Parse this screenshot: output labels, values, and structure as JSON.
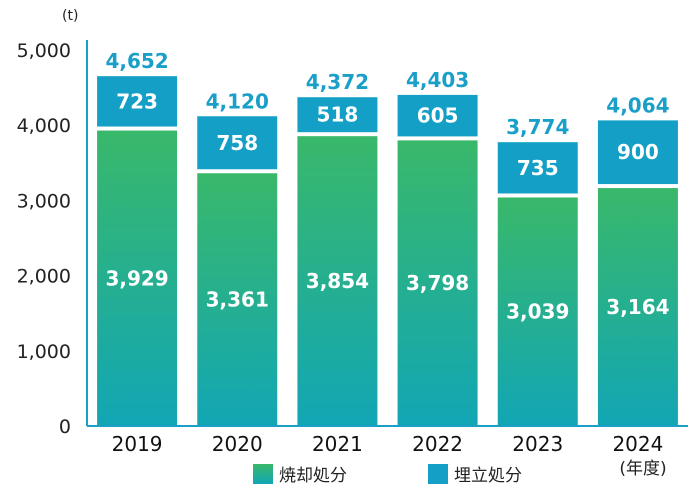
{
  "chart_data": {
    "type": "bar",
    "stacked": true,
    "unit_label": "(t)",
    "year_suffix_label": "(年度)",
    "categories": [
      "2019",
      "2020",
      "2021",
      "2022",
      "2023",
      "2024"
    ],
    "series": [
      {
        "name": "焼却処分",
        "values": [
          3929,
          3361,
          3854,
          3798,
          3039,
          3164
        ],
        "value_labels": [
          "3,929",
          "3,361",
          "3,854",
          "3,798",
          "3,039",
          "3,164"
        ]
      },
      {
        "name": "埋立処分",
        "values": [
          723,
          758,
          518,
          605,
          735,
          900
        ],
        "value_labels": [
          "723",
          "758",
          "518",
          "605",
          "735",
          "900"
        ]
      }
    ],
    "totals": [
      4652,
      4120,
      4372,
      4403,
      3774,
      4064
    ],
    "total_labels": [
      "4,652",
      "4,120",
      "4,372",
      "4,403",
      "3,774",
      "4,064"
    ],
    "y_ticks": [
      0,
      1000,
      2000,
      3000,
      4000,
      5000
    ],
    "y_tick_labels": [
      "0",
      "1,000",
      "2,000",
      "3,000",
      "4,000",
      "5,000"
    ],
    "ylim": [
      0,
      5000
    ],
    "legend_position": "bottom",
    "grid": false
  },
  "colors": {
    "incineration_top": "#39b86a",
    "incineration_bottom": "#12a6b5",
    "landfill": "#139fc6",
    "axis": "#1aa0c6",
    "total_label": "#1a9fc9"
  }
}
